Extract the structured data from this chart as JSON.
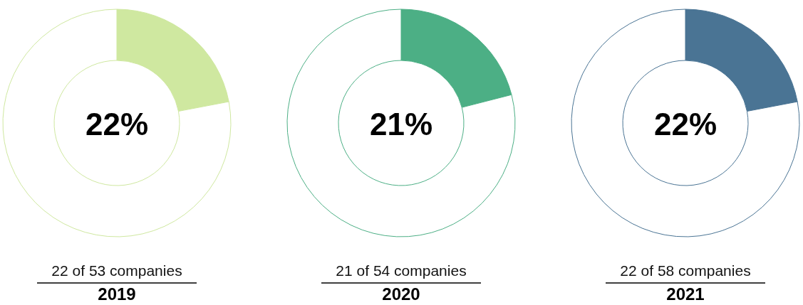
{
  "chart_data": [
    {
      "type": "donut",
      "title": "2019",
      "subtitle": "22 of 53 companies",
      "annotations": [
        "22%"
      ],
      "categories": [
        null,
        null
      ],
      "values": [
        22,
        78
      ],
      "colors": [
        "#cfe8a0",
        "#ffffff"
      ]
    },
    {
      "type": "donut",
      "title": "2020",
      "subtitle": "21 of 54 companies",
      "annotations": [
        "21%"
      ],
      "categories": [
        null,
        null
      ],
      "values": [
        21,
        79
      ],
      "colors": [
        "#4caf85",
        "#ffffff"
      ]
    },
    {
      "type": "donut",
      "title": "2021",
      "subtitle": "22 of 58 companies",
      "annotations": [
        "22%"
      ],
      "categories": [
        null,
        null
      ],
      "values": [
        22,
        78
      ],
      "colors": [
        "#4a7494",
        "#ffffff"
      ]
    }
  ]
}
